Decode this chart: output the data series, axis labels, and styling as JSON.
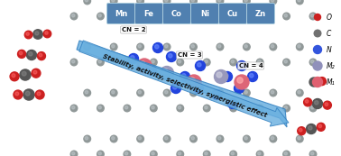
{
  "arrow_text": "Stability, activity, selectivity, synergistic effect",
  "cn_labels": [
    "CN = 2",
    "CN = 3",
    "CN = 4"
  ],
  "element_labels": [
    "Mn",
    "Fe",
    "Co",
    "Ni",
    "Cu",
    "Zn"
  ],
  "legend_labels": [
    "M₁",
    "M₂",
    "N",
    "C",
    "O"
  ],
  "legend_colors": [
    "#e06070",
    "#9090bb",
    "#3355dd",
    "#707070",
    "#cc2020"
  ],
  "bg_color": "#ffffff",
  "graphene_bond_color": "#909898",
  "graphene_atom_color": "#909898",
  "nitrogen_color": "#2244dd",
  "metal1_color": "#dd6677",
  "metal2_color": "#9999bb",
  "carbon_color": "#555555",
  "oxygen_color": "#cc2020",
  "arrow_fill": "#6ab0e0",
  "arrow_edge": "#3380c0",
  "element_box_color": "#5080b0",
  "element_text_color": "#ffffff",
  "cn_text_color": "#111111"
}
